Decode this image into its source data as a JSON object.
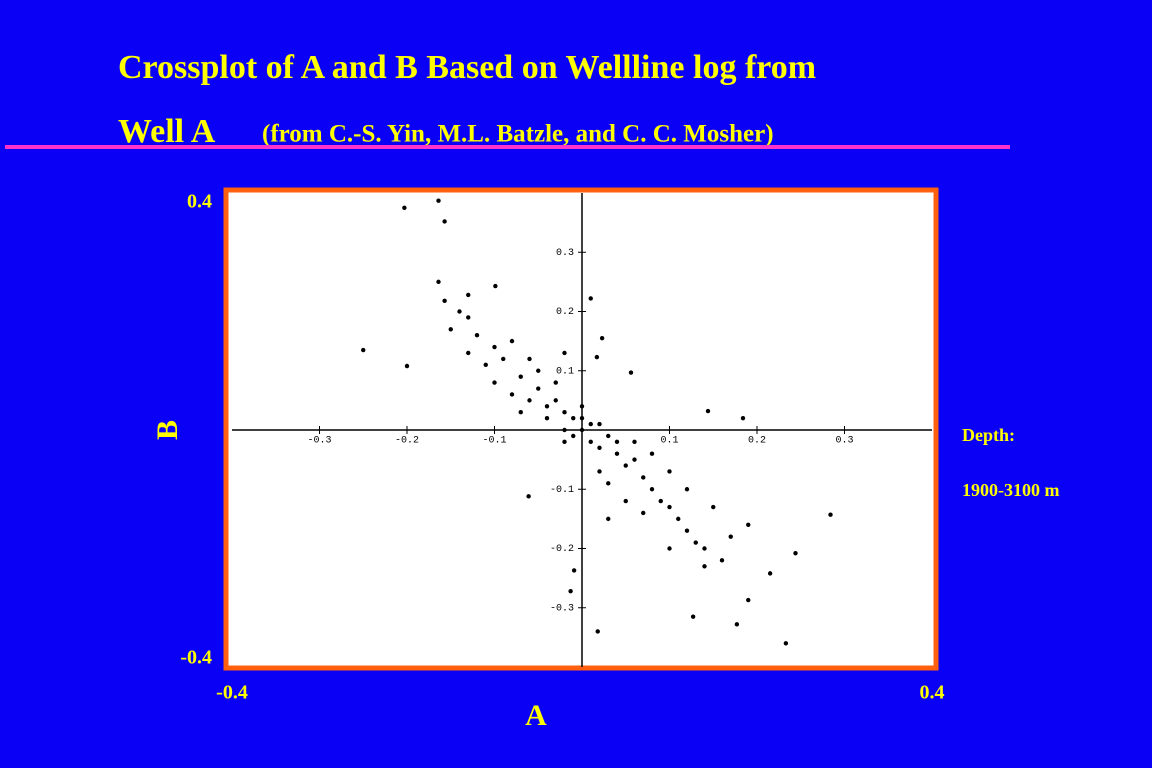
{
  "chart_data": {
    "type": "scatter",
    "title": "Crossplot of A and B Based on Wellline log from",
    "subtitle": "Well A",
    "source": "(from C.-S. Yin, M.L. Batzle, and C. C. Mosher)",
    "x_label": "A",
    "y_label": "B",
    "annotations": [
      "Depth:",
      "1900-3100 m"
    ],
    "xlim": [
      -0.4,
      0.4
    ],
    "ylim": [
      -0.4,
      0.4
    ],
    "xticks": [
      -0.4,
      0.4
    ],
    "yticks": [
      -0.4,
      0.4
    ],
    "inner_xticks": [
      -0.3,
      -0.2,
      -0.1,
      0.1,
      0.2,
      0.3
    ],
    "inner_yticks": [
      0.3,
      0.2,
      0.1,
      -0.1,
      -0.2,
      -0.3
    ],
    "color": "#000000",
    "x": [
      -0.203,
      -0.164,
      -0.157,
      -0.164,
      -0.13,
      -0.099,
      -0.25,
      -0.2,
      0.01,
      0.017,
      0.056,
      0.023,
      0.144,
      0.184,
      0.284,
      0.244,
      0.215,
      0.19,
      0.177,
      0.233,
      0.127,
      0.018,
      -0.009,
      -0.013,
      -0.061,
      -0.157,
      -0.02,
      0.0,
      0.01,
      -0.01,
      0.02,
      -0.03,
      0.03,
      -0.02,
      0.0,
      0.01,
      -0.04,
      0.04,
      -0.05,
      0.05,
      -0.06,
      0.06,
      -0.03,
      0.02,
      -0.07,
      0.07,
      -0.08,
      0.08,
      -0.05,
      0.03,
      -0.09,
      0.09,
      -0.1,
      0.1,
      -0.11,
      0.11,
      -0.12,
      0.12,
      -0.06,
      0.05,
      -0.04,
      0.04,
      -0.01,
      0.0,
      0.02,
      -0.02,
      0.06,
      -0.07,
      0.08,
      -0.13,
      0.13,
      -0.14,
      0.14,
      -0.08,
      0.07,
      0.15,
      -0.13,
      0.1,
      -0.1,
      0.16,
      0.17,
      0.12,
      -0.15,
      0.03,
      -0.02,
      0.19,
      0.1,
      0.14
    ],
    "y": [
      0.375,
      0.387,
      0.352,
      0.25,
      0.228,
      0.243,
      0.135,
      0.108,
      0.222,
      0.123,
      0.097,
      0.155,
      0.032,
      0.02,
      -0.143,
      -0.208,
      -0.242,
      -0.287,
      -0.328,
      -0.36,
      -0.315,
      -0.34,
      -0.237,
      -0.272,
      -0.112,
      0.218,
      0.03,
      0.0,
      -0.02,
      0.02,
      -0.03,
      0.05,
      -0.01,
      0.0,
      0.04,
      0.01,
      0.04,
      -0.04,
      0.07,
      -0.06,
      0.05,
      -0.05,
      0.08,
      -0.07,
      0.09,
      -0.08,
      0.06,
      -0.1,
      0.1,
      -0.09,
      0.12,
      -0.12,
      0.14,
      -0.13,
      0.11,
      -0.15,
      0.16,
      -0.17,
      0.12,
      -0.12,
      0.02,
      -0.02,
      -0.01,
      0.02,
      0.01,
      -0.02,
      -0.02,
      0.03,
      -0.04,
      0.19,
      -0.19,
      0.2,
      -0.2,
      0.15,
      -0.14,
      -0.13,
      0.13,
      -0.07,
      0.08,
      -0.22,
      -0.18,
      -0.1,
      0.17,
      -0.15,
      0.13,
      -0.16,
      -0.2,
      -0.23
    ]
  }
}
